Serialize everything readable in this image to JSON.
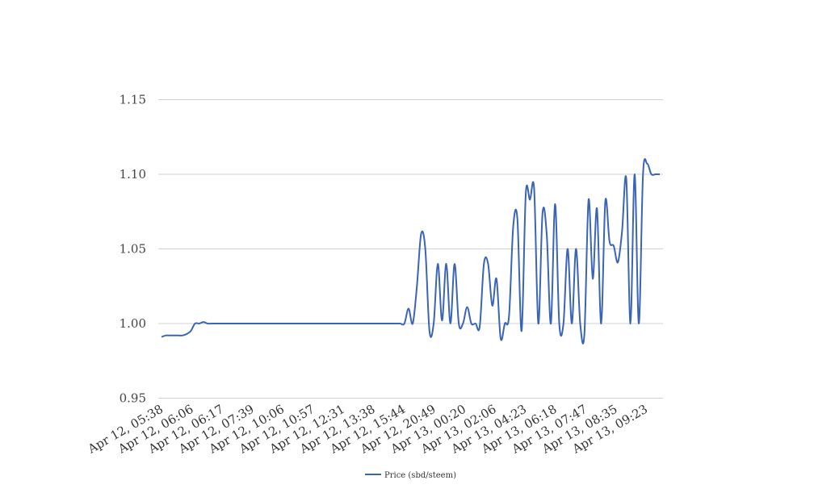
{
  "chart_data": {
    "type": "line",
    "title": "",
    "xlabel": "",
    "ylabel": "",
    "ylim": [
      0.95,
      1.15
    ],
    "yticks": [
      "0.95",
      "1.00",
      "1.05",
      "1.10",
      "1.15"
    ],
    "ytick_values": [
      0.95,
      1.0,
      1.05,
      1.1,
      1.15
    ],
    "grid": true,
    "legend": "bottom",
    "x_tick_labels": [
      "Apr 12, 05:38",
      "Apr 12, 06:06",
      "Apr 12, 06:17",
      "Apr 12, 07:39",
      "Apr 12, 10:06",
      "Apr 12, 10:57",
      "Apr 12, 12:31",
      "Apr 12, 13:38",
      "Apr 12, 15:44",
      "Apr 12, 20:49",
      "Apr 13, 00:20",
      "Apr 13, 02:06",
      "Apr 13, 04:23",
      "Apr 13, 06:18",
      "Apr 13, 07:47",
      "Apr 13, 08:35",
      "Apr 13, 09:23"
    ],
    "series": [
      {
        "name": "Price (sbd/steem)",
        "color": "#3a64b8",
        "values": [
          0.991,
          0.992,
          0.992,
          0.992,
          0.992,
          0.992,
          0.993,
          0.995,
          1.0,
          1.0,
          1.001,
          1.0,
          1.0,
          1.0,
          1.0,
          1.0,
          1.0,
          1.0,
          1.0,
          1.0,
          1.0,
          1.0,
          1.0,
          1.0,
          1.0,
          1.0,
          1.0,
          1.0,
          1.0,
          1.0,
          1.0,
          1.0,
          1.0,
          1.0,
          1.0,
          1.0,
          1.0,
          1.0,
          1.0,
          1.0,
          1.0,
          1.0,
          1.0,
          1.0,
          1.0,
          1.0,
          1.0,
          1.0,
          1.0,
          1.0,
          1.0,
          1.0,
          1.0,
          1.0,
          1.0,
          1.0,
          1.0,
          1.0,
          1.0,
          1.01,
          1.0,
          1.025,
          1.06,
          1.05,
          0.995,
          1.0,
          1.04,
          1.002,
          1.04,
          1.0,
          1.04,
          1.0,
          1.0,
          1.011,
          1.0,
          1.0,
          0.998,
          1.04,
          1.04,
          1.012,
          1.03,
          0.99,
          1.0,
          1.005,
          1.065,
          1.07,
          0.995,
          1.087,
          1.083,
          1.09,
          1.0,
          1.074,
          1.06,
          1.0,
          1.08,
          1.0,
          1.0,
          1.05,
          1.0,
          1.05,
          1.0,
          0.993,
          1.083,
          1.03,
          1.077,
          1.0,
          1.082,
          1.055,
          1.052,
          1.041,
          1.062,
          1.097,
          1.0,
          1.1,
          1.0,
          1.1,
          1.107,
          1.1,
          1.1,
          1.1
        ]
      }
    ]
  }
}
